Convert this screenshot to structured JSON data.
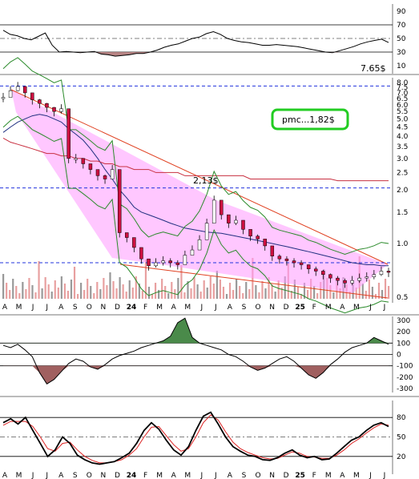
{
  "chart_data": [
    {
      "type": "line",
      "panel": "top-oscillator",
      "ylim": [
        10,
        90
      ],
      "ticks": [
        10,
        30,
        50,
        70,
        90
      ],
      "reference_lines": [
        30,
        50,
        70
      ],
      "series": [
        {
          "values": [
            62,
            56,
            54,
            50,
            48,
            53,
            58,
            40,
            30,
            31,
            30,
            29,
            30,
            31,
            27,
            26,
            24,
            25,
            26,
            28,
            28,
            30,
            33,
            37,
            40,
            42,
            46,
            50,
            52,
            57,
            60,
            56,
            50,
            47,
            45,
            44,
            42,
            40,
            40,
            41,
            40,
            39,
            38,
            36,
            34,
            32,
            30,
            29,
            32,
            35,
            38,
            42,
            45,
            47,
            49,
            44
          ]
        }
      ],
      "color": "#000000",
      "fill_below_color": "#b07878"
    },
    {
      "type": "line",
      "panel": "price",
      "scale": "log",
      "ylim": [
        0.5,
        8.0
      ],
      "ticks": [
        0.5,
        1.0,
        1.5,
        2.0,
        2.5,
        3.0,
        3.5,
        4.0,
        4.5,
        5.0,
        5.5,
        6.0,
        6.5,
        7.0,
        7.5,
        8.0
      ],
      "tick_labels": [
        "0.5",
        "1.0",
        "1.5",
        "2.0",
        "2.5",
        "3.0",
        "3.5",
        "4.0",
        "4.5",
        "5.0",
        "5.5",
        "6.0",
        "6.5",
        "7.0",
        "7.5",
        "8.0"
      ],
      "x_ticks": [
        "A",
        "M",
        "J",
        "J",
        "A",
        "S",
        "O",
        "N",
        "D",
        "24",
        "F",
        "M",
        "A",
        "M",
        "J",
        "J",
        "A",
        "S",
        "O",
        "N",
        "D",
        "25",
        "F",
        "M",
        "A",
        "M",
        "J",
        "J"
      ],
      "close": [
        6.6,
        7.2,
        7.6,
        7.0,
        6.4,
        6.1,
        5.8,
        5.5,
        5.7,
        3.0,
        3.0,
        2.8,
        2.6,
        2.4,
        2.3,
        2.6,
        1.15,
        1.08,
        0.95,
        0.82,
        0.75,
        0.78,
        0.8,
        0.78,
        0.76,
        0.86,
        0.92,
        1.05,
        1.3,
        1.75,
        1.45,
        1.3,
        1.35,
        1.2,
        1.1,
        1.06,
        0.97,
        0.85,
        0.82,
        0.8,
        0.78,
        0.76,
        0.72,
        0.7,
        0.67,
        0.64,
        0.62,
        0.6,
        0.62,
        0.64,
        0.65,
        0.67,
        0.7,
        0.69
      ],
      "moving_averages": [
        {
          "color": "#203080",
          "values": [
            4.2,
            4.5,
            4.8,
            5.0,
            5.2,
            5.3,
            5.2,
            5.0,
            4.8,
            4.4,
            4.1,
            3.8,
            3.4,
            3.0,
            2.6,
            2.3,
            2.0,
            1.8,
            1.6,
            1.5,
            1.45,
            1.4,
            1.35,
            1.3,
            1.26,
            1.22,
            1.2,
            1.18,
            1.16,
            1.15,
            1.14,
            1.12,
            1.1,
            1.08,
            1.06,
            1.04,
            1.02,
            1.0,
            0.98,
            0.96,
            0.94,
            0.92,
            0.9,
            0.88,
            0.86,
            0.84,
            0.82,
            0.8,
            0.78,
            0.77,
            0.76,
            0.76,
            0.75,
            0.75
          ]
        },
        {
          "color": "#c83040",
          "values": [
            3.9,
            3.7,
            3.6,
            3.5,
            3.4,
            3.3,
            3.2,
            3.2,
            3.1,
            3.1,
            3.0,
            3.0,
            2.9,
            2.9,
            2.8,
            2.8,
            2.7,
            2.7,
            2.6,
            2.6,
            2.6,
            2.5,
            2.5,
            2.5,
            2.5,
            2.4,
            2.4,
            2.4,
            2.4,
            2.4,
            2.4,
            2.4,
            2.4,
            2.4,
            2.3,
            2.3,
            2.3,
            2.3,
            2.3,
            2.3,
            2.3,
            2.3,
            2.3,
            2.3,
            2.3,
            2.3,
            2.25,
            2.25,
            2.25,
            2.25,
            2.25,
            2.25,
            2.25,
            2.25
          ]
        }
      ],
      "horizontal_lines": [
        7.65,
        2.05,
        0.78
      ],
      "annotations": [
        {
          "text": "7.65$"
        },
        {
          "text": "2,13$"
        },
        {
          "text": "pmc...1,82$"
        }
      ]
    },
    {
      "type": "line",
      "panel": "cci",
      "ylim": [
        -300,
        300
      ],
      "ticks": [
        300,
        200,
        100,
        0,
        -100,
        -200,
        -300
      ],
      "reference_lines": [
        100,
        0,
        -100
      ],
      "series": [
        {
          "values": [
            80,
            60,
            90,
            40,
            -20,
            -160,
            -260,
            -220,
            -150,
            -80,
            -40,
            -60,
            -110,
            -130,
            -90,
            -40,
            -10,
            10,
            30,
            60,
            80,
            100,
            120,
            160,
            280,
            320,
            150,
            100,
            80,
            60,
            40,
            0,
            -20,
            -60,
            -110,
            -140,
            -120,
            -80,
            -40,
            -20,
            -60,
            -120,
            -180,
            -210,
            -160,
            -90,
            -40,
            20,
            60,
            80,
            100,
            150,
            120,
            90
          ]
        }
      ],
      "color": "#000000"
    },
    {
      "type": "line",
      "panel": "stochastic",
      "ylim": [
        0,
        100
      ],
      "ticks": [
        20,
        50,
        80
      ],
      "reference_lines": [
        20,
        50,
        80
      ],
      "series": [
        {
          "values": [
            72,
            78,
            70,
            80,
            60,
            40,
            20,
            30,
            50,
            40,
            22,
            15,
            10,
            8,
            10,
            12,
            18,
            25,
            40,
            60,
            72,
            62,
            45,
            30,
            22,
            35,
            60,
            82,
            88,
            70,
            50,
            35,
            28,
            22,
            20,
            15,
            14,
            18,
            25,
            30,
            22,
            18,
            20,
            15,
            16,
            25,
            35,
            45,
            50,
            60,
            68,
            72,
            66
          ]
        },
        {
          "values": [
            68,
            74,
            74,
            74,
            66,
            50,
            32,
            28,
            40,
            42,
            30,
            20,
            14,
            10,
            10,
            12,
            15,
            22,
            32,
            50,
            65,
            66,
            52,
            38,
            28,
            32,
            50,
            72,
            84,
            76,
            58,
            42,
            32,
            26,
            22,
            18,
            16,
            17,
            22,
            27,
            25,
            20,
            19,
            17,
            17,
            22,
            30,
            40,
            47,
            56,
            64,
            70,
            68
          ]
        }
      ]
    }
  ]
}
